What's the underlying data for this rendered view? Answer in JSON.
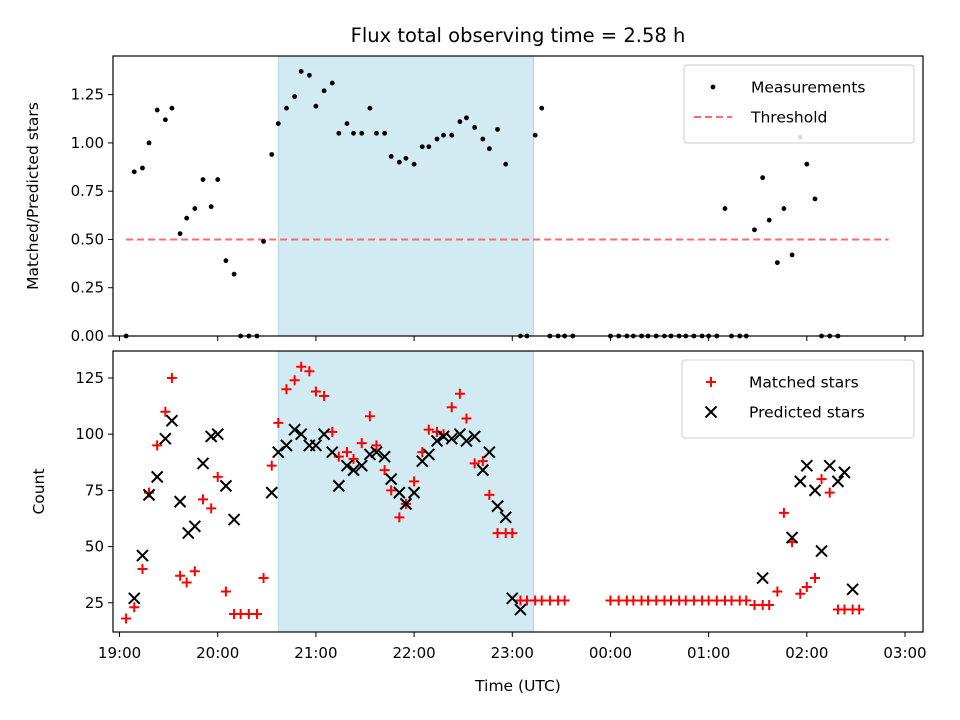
{
  "title": "Flux total observing time = 2.58 h",
  "colors": {
    "shade": "#add8e6",
    "threshold": "#ff6b6b",
    "matched": "#ff0000",
    "predicted": "#000000",
    "measurement": "#000000"
  },
  "shaded_interval": [
    "20:37",
    "23:13"
  ],
  "x_ticks": [
    "19:00",
    "20:00",
    "21:00",
    "22:00",
    "23:00",
    "00:00",
    "01:00",
    "02:00",
    "03:00"
  ],
  "chart_data": [
    {
      "type": "scatter",
      "ylabel": "Matched/Predicted stars",
      "xlabel": "",
      "xlim": [
        "18:56",
        "03:11"
      ],
      "ylim": [
        0,
        1.45
      ],
      "y_ticks": [
        "0.00",
        "0.25",
        "0.50",
        "0.75",
        "1.00",
        "1.25"
      ],
      "legend_position": "top-right",
      "threshold": {
        "name": "Threshold",
        "value": 0.5,
        "x_range": [
          "19:04",
          "02:50"
        ]
      },
      "series": [
        {
          "name": "Measurements",
          "marker": "dot",
          "x": [
            "19:04",
            "19:09",
            "19:14",
            "19:18",
            "19:23",
            "19:28",
            "19:32",
            "19:37",
            "19:41",
            "19:46",
            "19:51",
            "19:56",
            "20:00",
            "20:05",
            "20:10",
            "20:14",
            "20:19",
            "20:24",
            "20:28",
            "20:33",
            "20:37",
            "20:42",
            "20:47",
            "20:51",
            "20:56",
            "21:00",
            "21:05",
            "21:10",
            "21:14",
            "21:19",
            "21:23",
            "21:28",
            "21:33",
            "21:37",
            "21:42",
            "21:46",
            "21:51",
            "21:55",
            "22:00",
            "22:05",
            "22:09",
            "22:14",
            "22:18",
            "22:23",
            "22:28",
            "22:32",
            "22:37",
            "22:42",
            "22:46",
            "22:51",
            "22:56",
            "23:00",
            "23:05",
            "23:09",
            "23:14",
            "23:18",
            "23:23",
            "23:28",
            "23:32",
            "23:37",
            "23:42",
            "23:47",
            "23:51",
            "23:56",
            "00:00",
            "00:05",
            "00:10",
            "00:14",
            "00:19",
            "00:23",
            "00:28",
            "00:33",
            "00:37",
            "00:42",
            "00:46",
            "00:51",
            "00:56",
            "01:00",
            "01:05",
            "01:10",
            "01:14",
            "01:19",
            "01:23",
            "01:28",
            "01:33",
            "01:37",
            "01:42",
            "01:46",
            "01:51",
            "01:56",
            "02:00",
            "02:05",
            "02:09",
            "02:14",
            "02:19",
            "02:23",
            "02:28",
            "02:32",
            "02:37",
            "02:42",
            "02:46",
            "02:51"
          ],
          "y": [
            0,
            0.85,
            0.87,
            1.0,
            1.17,
            1.12,
            1.18,
            0.53,
            0.61,
            0.66,
            0.81,
            0.67,
            0.81,
            0.39,
            0.32,
            0,
            0,
            0,
            0.49,
            0.94,
            1.1,
            1.18,
            1.24,
            1.37,
            1.35,
            1.19,
            1.27,
            1.31,
            1.05,
            1.1,
            1.05,
            1.05,
            1.18,
            1.05,
            1.05,
            0.93,
            0.9,
            0.92,
            0.89,
            0.98,
            0.98,
            1.02,
            1.04,
            1.04,
            1.11,
            1.13,
            1.08,
            1.02,
            0.97,
            1.07,
            0.89,
            null,
            0,
            0,
            1.04,
            1.18,
            0,
            0,
            0,
            0,
            null,
            null,
            null,
            null,
            0,
            0,
            0,
            0,
            0,
            0,
            0,
            0,
            0,
            0,
            0,
            0,
            0,
            0,
            0,
            0.66,
            0,
            0,
            0,
            0.55,
            0.82,
            0.6,
            0.38,
            0.66,
            0.42,
            1.03,
            0.89,
            0.71,
            0,
            0,
            0,
            null,
            null,
            null,
            null,
            null,
            null,
            null
          ]
        }
      ]
    },
    {
      "type": "scatter",
      "ylabel": "Count",
      "xlabel": "Time (UTC)",
      "xlim": [
        "18:56",
        "03:11"
      ],
      "ylim": [
        12,
        137
      ],
      "y_ticks": [
        "25",
        "50",
        "75",
        "100",
        "125"
      ],
      "legend_position": "top-right",
      "series": [
        {
          "name": "Matched stars",
          "marker": "plus",
          "x": [
            "19:04",
            "19:09",
            "19:14",
            "19:18",
            "19:23",
            "19:28",
            "19:32",
            "19:37",
            "19:41",
            "19:46",
            "19:51",
            "19:56",
            "20:00",
            "20:05",
            "20:10",
            "20:14",
            "20:19",
            "20:24",
            "20:28",
            "20:33",
            "20:37",
            "20:42",
            "20:47",
            "20:51",
            "20:56",
            "21:00",
            "21:05",
            "21:10",
            "21:14",
            "21:19",
            "21:23",
            "21:28",
            "21:33",
            "21:37",
            "21:42",
            "21:46",
            "21:51",
            "21:55",
            "22:00",
            "22:05",
            "22:09",
            "22:14",
            "22:18",
            "22:23",
            "22:28",
            "22:32",
            "22:37",
            "22:42",
            "22:46",
            "22:51",
            "22:56",
            "23:00",
            "23:05",
            "23:09",
            "23:14",
            "23:18",
            "23:23",
            "23:28",
            "23:32",
            "23:37",
            "23:42",
            "23:47",
            "23:51",
            "23:56",
            "00:00",
            "00:05",
            "00:10",
            "00:14",
            "00:19",
            "00:23",
            "00:28",
            "00:33",
            "00:37",
            "00:42",
            "00:46",
            "00:51",
            "00:56",
            "01:00",
            "01:05",
            "01:10",
            "01:14",
            "01:19",
            "01:23",
            "01:28",
            "01:33",
            "01:37",
            "01:42",
            "01:46",
            "01:51",
            "01:56",
            "02:00",
            "02:05",
            "02:09",
            "02:14",
            "02:19",
            "02:23",
            "02:28",
            "02:32",
            "02:37",
            "02:42",
            "02:46",
            "02:51"
          ],
          "y": [
            18,
            23,
            40,
            74,
            95,
            110,
            125,
            37,
            34,
            39,
            71,
            67,
            81,
            30,
            20,
            20,
            20,
            20,
            36,
            86,
            105,
            120,
            124,
            130,
            128,
            119,
            117,
            101,
            90,
            92,
            89,
            96,
            108,
            95,
            84,
            75,
            63,
            69,
            79,
            92,
            102,
            101,
            100,
            112,
            118,
            107,
            87,
            88,
            73,
            56,
            56,
            56,
            26,
            26,
            26,
            26,
            26,
            26,
            26,
            null,
            null,
            null,
            null,
            null,
            26,
            26,
            26,
            26,
            26,
            26,
            26,
            26,
            26,
            26,
            26,
            26,
            26,
            26,
            26,
            26,
            26,
            26,
            26,
            24,
            24,
            24,
            30,
            65,
            52,
            29,
            32,
            36,
            80,
            74,
            22,
            22,
            22,
            22,
            null,
            null,
            null,
            null
          ]
        },
        {
          "name": "Predicted stars",
          "marker": "x",
          "x": [
            "19:09",
            "19:14",
            "19:18",
            "19:23",
            "19:28",
            "19:32",
            "19:37",
            "19:42",
            "19:46",
            "19:51",
            "19:56",
            "20:00",
            "20:05",
            "20:10",
            "20:33",
            "20:37",
            "20:42",
            "20:47",
            "20:51",
            "20:56",
            "21:00",
            "21:05",
            "21:10",
            "21:14",
            "21:19",
            "21:23",
            "21:28",
            "21:33",
            "21:37",
            "21:42",
            "21:46",
            "21:51",
            "21:55",
            "22:00",
            "22:05",
            "22:09",
            "22:14",
            "22:18",
            "22:23",
            "22:28",
            "22:32",
            "22:37",
            "22:42",
            "22:46",
            "22:51",
            "22:56",
            "23:00",
            "23:05",
            "23:09",
            "23:14",
            "23:18",
            "01:33",
            "01:51",
            "01:56",
            "02:00",
            "02:05",
            "02:09",
            "02:14",
            "02:19",
            "02:23",
            "02:28"
          ],
          "y": [
            27,
            46,
            73,
            81,
            98,
            106,
            70,
            56,
            59,
            87,
            99,
            100,
            77,
            62,
            74,
            92,
            95,
            102,
            100,
            95,
            95,
            100,
            92,
            77,
            86,
            84,
            86,
            91,
            92,
            90,
            80,
            74,
            69,
            74,
            88,
            91,
            97,
            99,
            98,
            100,
            97,
            99,
            84,
            92,
            68,
            63,
            27,
            22,
            null,
            null,
            null,
            36,
            54,
            79,
            86,
            75,
            48,
            86,
            79,
            83,
            31
          ]
        }
      ]
    }
  ]
}
